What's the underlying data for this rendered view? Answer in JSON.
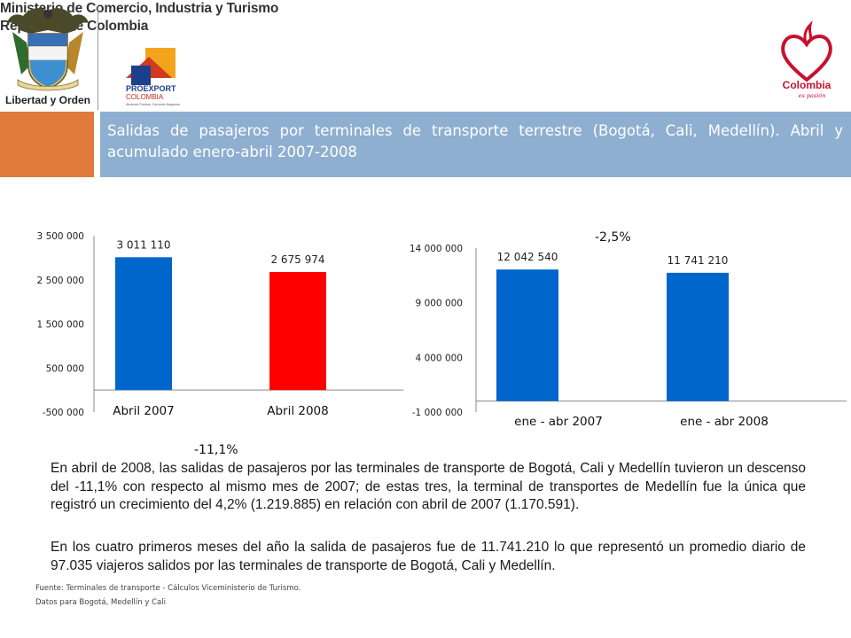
{
  "header": {
    "coat_motto": "Libertad y Orden",
    "ministry_line1": "Ministerio de Comercio, Industria y Turismo",
    "ministry_line2": "República de Colombia",
    "proexport_name": "PROEXPORT",
    "proexport_country": "COLOMBIA",
    "proexport_tagline": "Abriendo Puertos, Cerrando Negocios",
    "colombia_brand": "Colombia",
    "colombia_tagline": "es pasión"
  },
  "title": {
    "line": "Salidas de pasajeros por terminales de transporte terrestre (Bogotá, Cali, Medellín). Abril y acumulado enero-abril 2007-2008"
  },
  "colors": {
    "blue": "#0066CC",
    "red": "#FF0000",
    "orange": "#E07B3C",
    "title_bg": "#8FAFD0"
  },
  "chart_data": [
    {
      "type": "bar",
      "categories": [
        "Abril 2007",
        "Abril 2008"
      ],
      "values": [
        3011110,
        2675974
      ],
      "value_labels": [
        "3 011 110",
        "2 675 974"
      ],
      "bar_colors": [
        "#0066CC",
        "#FF0000"
      ],
      "yticks": [
        "3 500 000",
        "2 500 000",
        "1 500 000",
        "500 000",
        "-500 000"
      ],
      "ytick_values": [
        3500000,
        2500000,
        1500000,
        500000,
        -500000
      ],
      "ylim": [
        -500000,
        3500000
      ],
      "change_label": "-11,1%"
    },
    {
      "type": "bar",
      "categories": [
        "ene - abr 2007",
        "ene - abr 2008"
      ],
      "values": [
        12042540,
        11741210
      ],
      "value_labels": [
        "12 042 540",
        "11 741 210"
      ],
      "bar_colors": [
        "#0066CC",
        "#0066CC"
      ],
      "yticks": [
        "14 000 000",
        "9 000 000",
        "4 000 000",
        "-1 000 000"
      ],
      "ytick_values": [
        14000000,
        9000000,
        4000000,
        -1000000
      ],
      "ylim": [
        -1000000,
        14000000
      ],
      "change_label": "-2,5%"
    }
  ],
  "body": {
    "paragraph1": "En abril de 2008, las salidas de pasajeros por las terminales de transporte de Bogotá, Cali y Medellín tuvieron un descenso del -11,1% con respecto al mismo mes de 2007; de estas tres, la terminal de transportes de Medellín fue la única que registró un crecimiento del 4,2% (1.219.885) en relación con abril de 2007 (1.170.591).",
    "paragraph2": "En los cuatro primeros meses del año la salida de pasajeros fue de 11.741.210 lo que representó un promedio diario de 97.035 viajeros salidos por las terminales de transporte de Bogotá, Cali y Medellín."
  },
  "footer": {
    "source": "Fuente: Terminales de transporte - Cálculos Viceministerio de Turismo.",
    "note": "Datos para Bogotá, Medellín y Cali"
  }
}
